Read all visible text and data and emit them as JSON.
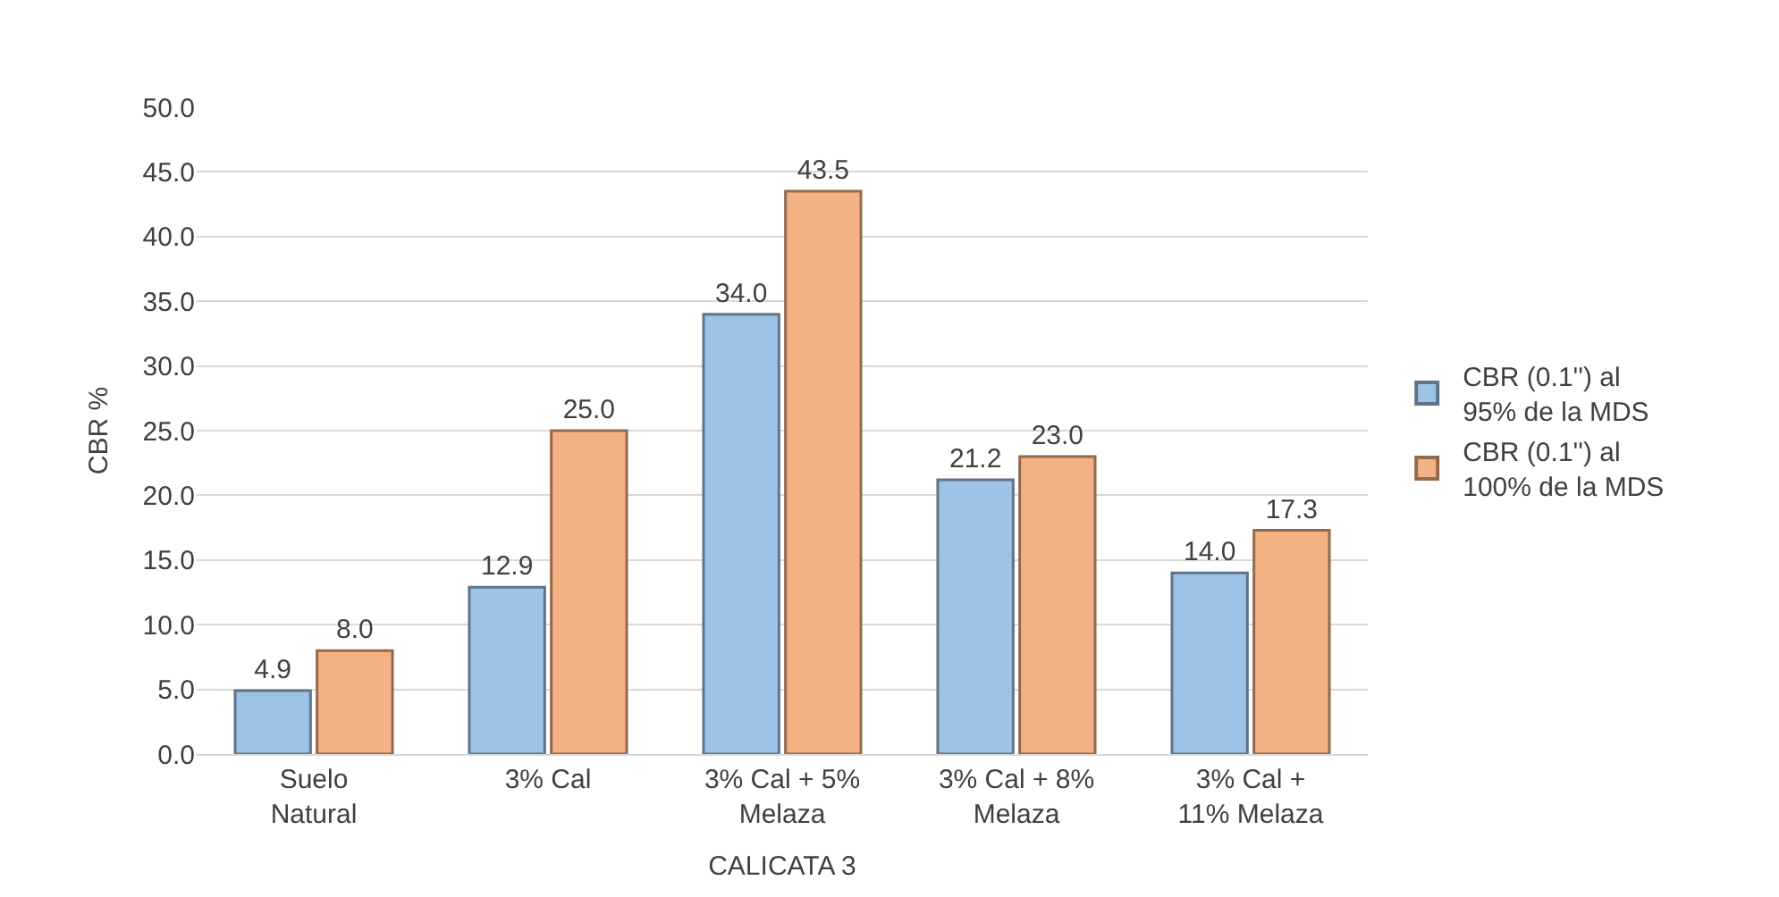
{
  "chart_data": {
    "type": "bar",
    "xlabel": "CALICATA 3",
    "ylabel": "CBR %",
    "categories": [
      "Suelo\nNatural",
      "3% Cal",
      "3% Cal + 5%\nMelaza",
      "3% Cal + 8%\nMelaza",
      "3% Cal +\n11% Melaza"
    ],
    "series": [
      {
        "name": "CBR (0.1'') al\n95% de la MDS",
        "color": "#9dc3e6",
        "values": [
          4.9,
          12.9,
          34.0,
          21.2,
          14.0
        ],
        "value_labels": [
          "4.9",
          "12.9",
          "34.0",
          "21.2",
          "14.0"
        ]
      },
      {
        "name": "CBR (0.1'') al\n100% de la MDS",
        "color": "#f4b183",
        "values": [
          8.0,
          25.0,
          43.5,
          23.0,
          17.3
        ],
        "value_labels": [
          "8.0",
          "25.0",
          "43.5",
          "23.0",
          "17.3"
        ]
      }
    ],
    "ylim": [
      0,
      50
    ],
    "yticks": [
      {
        "value": 0,
        "label": "0.0"
      },
      {
        "value": 5,
        "label": "5.0"
      },
      {
        "value": 10,
        "label": "10.0"
      },
      {
        "value": 15,
        "label": "15.0"
      },
      {
        "value": 20,
        "label": "20.0"
      },
      {
        "value": 25,
        "label": "25.0"
      },
      {
        "value": 30,
        "label": "30.0"
      },
      {
        "value": 35,
        "label": "35.0"
      },
      {
        "value": 40,
        "label": "40.0"
      },
      {
        "value": 45,
        "label": "45.0"
      },
      {
        "value": 50,
        "label": "50.0"
      }
    ],
    "grid": "y",
    "legend": "right"
  }
}
